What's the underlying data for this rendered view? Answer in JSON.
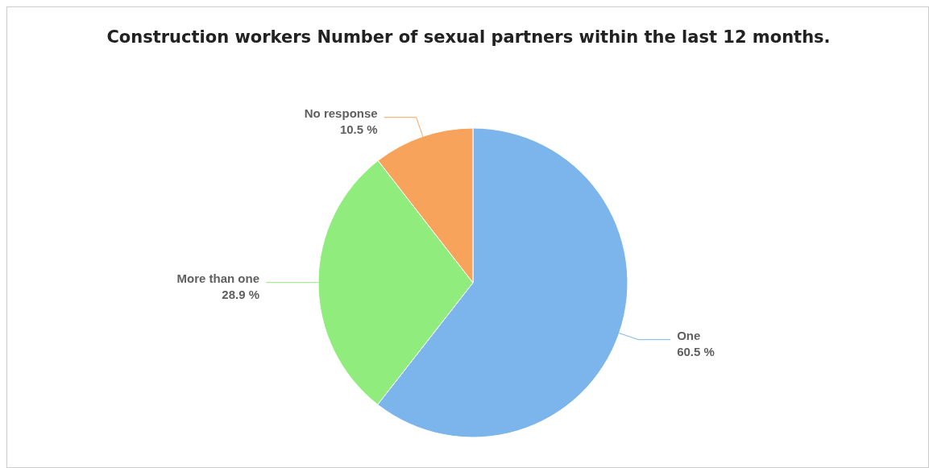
{
  "chart_data": {
    "type": "pie",
    "title": "Construction workers Number of sexual partners within the last 12 months.",
    "categories": [
      "One",
      "More than one",
      "No response"
    ],
    "values": [
      60.5,
      28.9,
      10.5
    ],
    "value_labels": [
      "60.5 %",
      "28.9 %",
      "10.5 %"
    ],
    "colors": [
      "#7cb5ec",
      "#90ed7d",
      "#f7a35c"
    ],
    "legend": false
  }
}
